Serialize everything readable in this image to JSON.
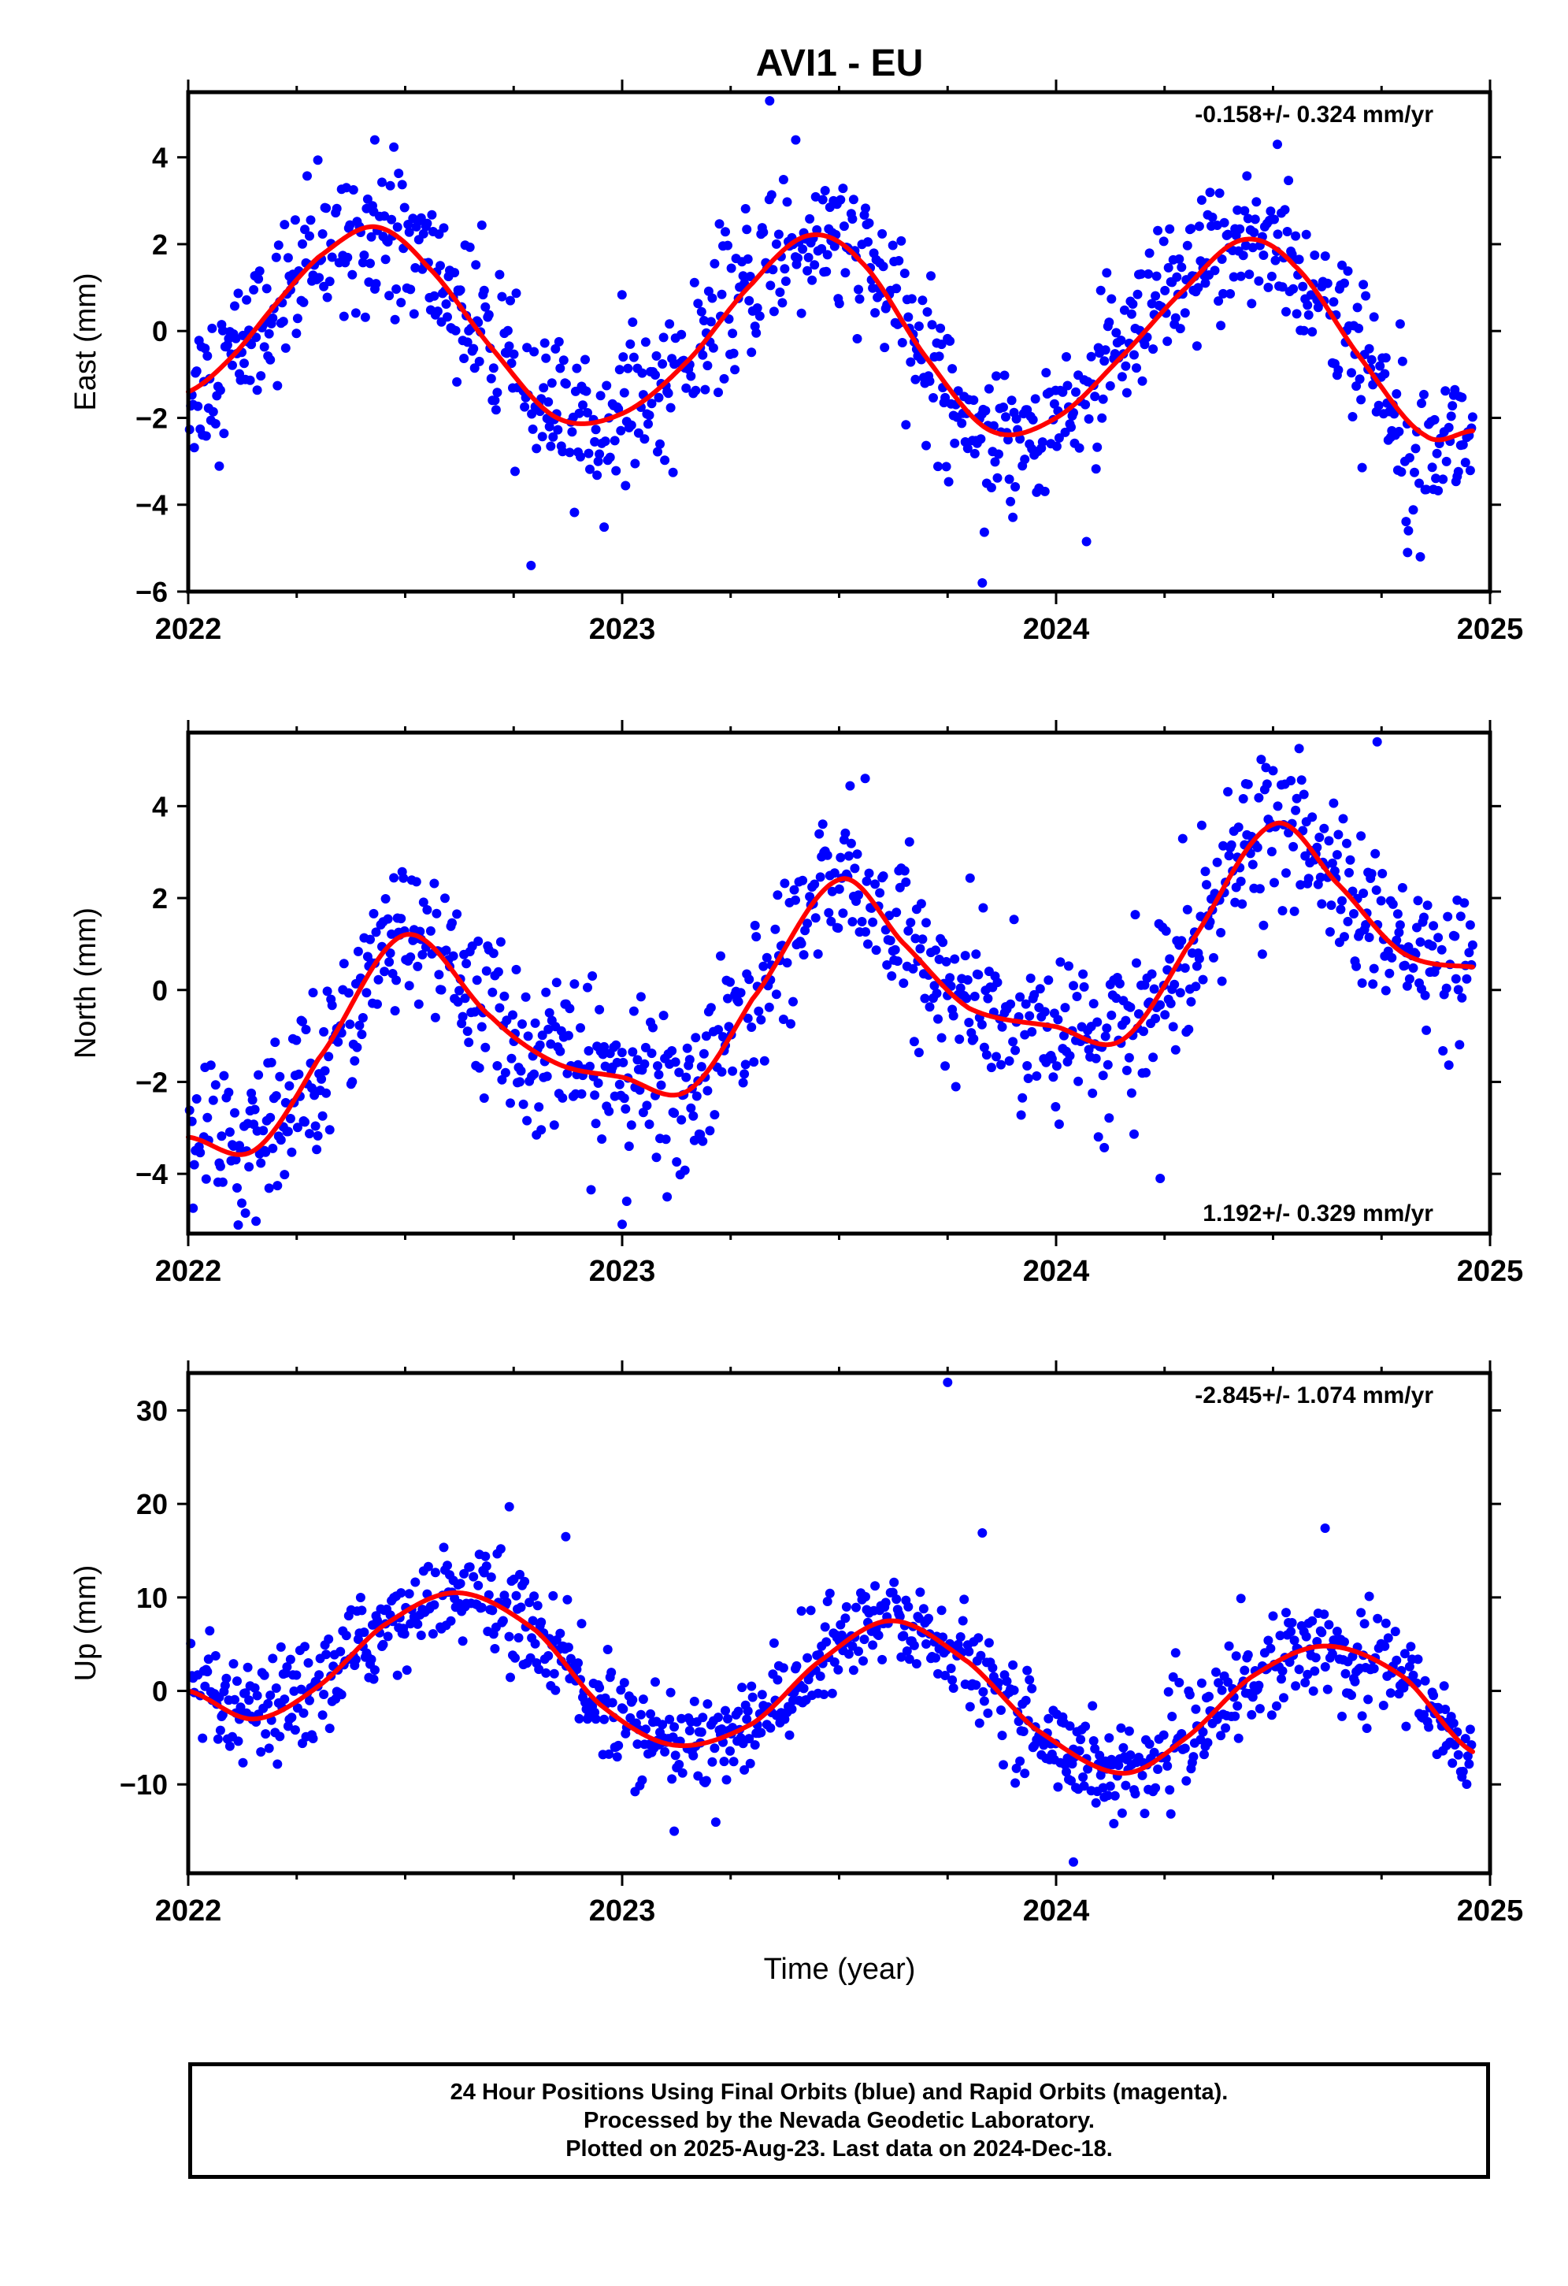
{
  "figure": {
    "title": "AVI1 - EU",
    "xlabel": "Time (year)",
    "footer_lines": [
      "24 Hour Positions Using Final Orbits (blue) and Rapid Orbits (magenta).",
      "Processed by the Nevada Geodetic Laboratory.",
      "Plotted on 2025-Aug-23. Last data on 2024-Dec-18."
    ]
  },
  "colors": {
    "points": "#0000ff",
    "fit": "#ff0000",
    "axis": "#000000"
  },
  "chart_data": [
    {
      "type": "scatter",
      "ylabel": "East (mm)",
      "velocity_text": "-0.158+/- 0.324 mm/yr",
      "velocity_position": "top-right",
      "xlim": [
        2022.0,
        2025.0
      ],
      "ylim": [
        -6,
        5.5
      ],
      "yticks": [
        4,
        2,
        0,
        -2,
        -4,
        -6
      ],
      "xticks": [
        2022,
        2023,
        2024,
        2025
      ],
      "grid": false,
      "fit_series": {
        "name": "",
        "x": [
          2022.0,
          2022.1,
          2022.2,
          2022.3,
          2022.43,
          2022.55,
          2022.7,
          2022.85,
          2023.0,
          2023.15,
          2023.3,
          2023.43,
          2023.55,
          2023.7,
          2023.85,
          2024.0,
          2024.15,
          2024.3,
          2024.43,
          2024.55,
          2024.7,
          2024.85,
          2024.96
        ],
        "y": [
          -1.4,
          -0.6,
          0.6,
          1.7,
          2.4,
          1.5,
          -0.4,
          -2.0,
          -1.9,
          -0.7,
          1.1,
          2.2,
          1.6,
          -0.6,
          -2.3,
          -2.0,
          -0.6,
          1.0,
          2.1,
          1.5,
          -0.6,
          -2.4,
          -2.3
        ]
      },
      "points_series": {
        "name": "",
        "noise_sigma": 0.85,
        "outliers": [
          [
            2022.79,
            -5.4
          ],
          [
            2023.34,
            5.3
          ],
          [
            2023.83,
            -5.8
          ],
          [
            2024.81,
            -5.1
          ],
          [
            2022.43,
            4.4
          ],
          [
            2023.4,
            4.4
          ],
          [
            2024.51,
            4.3
          ]
        ]
      }
    },
    {
      "type": "scatter",
      "ylabel": "North (mm)",
      "velocity_text": "1.192+/- 0.329 mm/yr",
      "velocity_position": "bottom-right",
      "xlim": [
        2022.0,
        2025.0
      ],
      "ylim": [
        -5.3,
        5.6
      ],
      "yticks": [
        4,
        2,
        0,
        -2,
        -4
      ],
      "xticks": [
        2022,
        2023,
        2024,
        2025
      ],
      "grid": false,
      "fit_series": {
        "name": "",
        "x": [
          2022.0,
          2022.15,
          2022.3,
          2022.5,
          2022.7,
          2022.85,
          2023.0,
          2023.15,
          2023.3,
          2023.5,
          2023.65,
          2023.8,
          2024.0,
          2024.15,
          2024.3,
          2024.5,
          2024.65,
          2024.8,
          2024.96
        ],
        "y": [
          -3.2,
          -3.5,
          -1.5,
          1.2,
          -0.6,
          -1.6,
          -1.9,
          -2.2,
          -0.2,
          2.4,
          1.0,
          -0.4,
          -0.8,
          -1.1,
          0.9,
          3.6,
          2.3,
          0.8,
          0.5
        ]
      },
      "points_series": {
        "name": "",
        "noise_sigma": 0.85,
        "outliers": [
          [
            2023.0,
            -5.1
          ],
          [
            2024.74,
            5.4
          ],
          [
            2024.24,
            -4.1
          ],
          [
            2023.56,
            4.6
          ]
        ]
      }
    },
    {
      "type": "scatter",
      "ylabel": "Up (mm)",
      "velocity_text": "-2.845+/- 1.074 mm/yr",
      "velocity_position": "top-right",
      "xlim": [
        2022.0,
        2025.0
      ],
      "ylim": [
        -19.5,
        34
      ],
      "yticks": [
        30,
        20,
        10,
        0,
        -10
      ],
      "xticks": [
        2022,
        2023,
        2024,
        2025
      ],
      "grid": false,
      "fit_series": {
        "name": "",
        "x": [
          2022.0,
          2022.15,
          2022.3,
          2022.45,
          2022.62,
          2022.8,
          2022.95,
          2023.12,
          2023.3,
          2023.45,
          2023.62,
          2023.8,
          2023.95,
          2024.15,
          2024.3,
          2024.45,
          2024.62,
          2024.8,
          2024.96
        ],
        "y": [
          0.0,
          -3.0,
          0.5,
          7.0,
          10.5,
          6.5,
          -1.5,
          -5.8,
          -3.5,
          3.0,
          7.5,
          3.0,
          -4.0,
          -8.8,
          -5.0,
          1.5,
          4.8,
          1.5,
          -6.5
        ]
      },
      "points_series": {
        "name": "",
        "noise_sigma": 2.6,
        "outliers": [
          [
            2023.75,
            33.0
          ],
          [
            2022.74,
            19.7
          ],
          [
            2022.87,
            16.5
          ],
          [
            2023.83,
            16.9
          ],
          [
            2024.62,
            17.4
          ],
          [
            2024.04,
            -18.3
          ],
          [
            2023.12,
            -15.0
          ]
        ]
      }
    }
  ]
}
